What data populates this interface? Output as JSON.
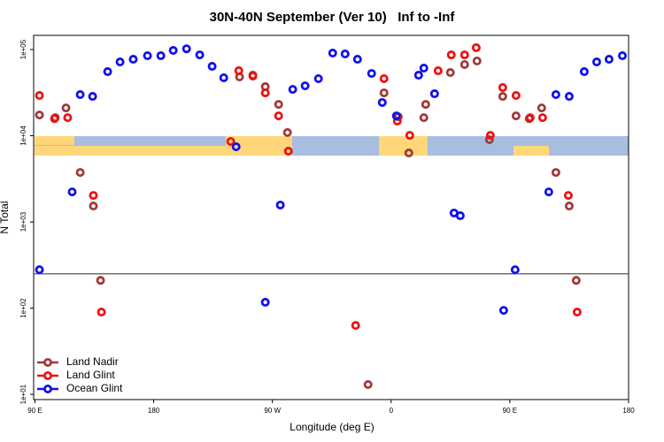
{
  "chart_data": {
    "type": "scatter",
    "title": "30N-40N September (Ver 10)   Inf to -Inf",
    "x_label": "Longitude (deg E)",
    "y_label": "N Total",
    "xlim": [
      89,
      540
    ],
    "xticks": [
      {
        "value": 90,
        "label": "90 E"
      },
      {
        "value": 180,
        "label": "180"
      },
      {
        "value": 270,
        "label": "90 W"
      },
      {
        "value": 360,
        "label": "0"
      },
      {
        "value": 450,
        "label": "90 E"
      },
      {
        "value": 540,
        "label": "180"
      }
    ],
    "ylim": [
      8.7,
      146000
    ],
    "log_y": true,
    "yticks": [
      {
        "value": 10,
        "label": "1e+01"
      },
      {
        "value": 100,
        "label": "1e+02"
      },
      {
        "value": 1000,
        "label": "1e+03"
      },
      {
        "value": 10000,
        "label": "1e+04"
      },
      {
        "value": 100000,
        "label": "1e+05"
      }
    ],
    "hline": 250,
    "legend": "bottom-left",
    "series": [
      {
        "name": "Land Nadir",
        "color": "#a03a3a",
        "x": [
          93.4,
          105.4,
          113.5,
          124.3,
          134.3,
          139.7,
          245.1,
          255.2,
          264.6,
          274.7,
          281.4,
          342.5,
          354.6,
          365.4,
          373.4,
          384.8,
          386.2,
          404.9,
          415.7,
          425.1,
          434.5,
          444.6,
          454.7,
          464.7,
          474.1,
          484.9,
          495.0,
          500.3
        ],
        "values": [
          17400,
          16200,
          21000,
          3750,
          1530,
          210,
          48100,
          50400,
          37100,
          23100,
          10900,
          13,
          31400,
          16600,
          6310,
          16200,
          23100,
          54100,
          67000,
          73600,
          9000,
          28600,
          17000,
          15800,
          21000,
          3750,
          1530,
          210
        ]
      },
      {
        "name": "Land Glint",
        "color": "#ee1111",
        "x": [
          93.4,
          104.8,
          114.8,
          134.3,
          140.4,
          238.4,
          244.5,
          255.2,
          264.6,
          274.7,
          282.1,
          333.1,
          354.6,
          364.7,
          374.1,
          395.6,
          405.6,
          415.7,
          424.5,
          435.2,
          444.6,
          454.7,
          465.4,
          474.8,
          494.3,
          501.0
        ],
        "values": [
          29300,
          15800,
          16200,
          2030,
          90,
          8570,
          56700,
          49200,
          31400,
          17000,
          6620,
          63,
          45900,
          14800,
          10100,
          56700,
          86700,
          86700,
          105000,
          10100,
          36200,
          29300,
          16200,
          16200,
          2030,
          90
        ]
      },
      {
        "name": "Ocean Glint",
        "color": "#1111ee",
        "x": [
          93.4,
          118.2,
          124.3,
          133.7,
          145.1,
          154.5,
          164.5,
          175.3,
          185.4,
          194.8,
          204.9,
          214.9,
          224.3,
          233.1,
          242.5,
          264.6,
          276.0,
          285.4,
          294.8,
          304.9,
          315.7,
          325.1,
          334.5,
          345.2,
          353.3,
          364.0,
          380.8,
          384.8,
          392.9,
          407.7,
          412.4,
          445.3,
          454.0,
          479.5,
          484.9,
          495.0,
          506.4,
          515.8,
          525.2,
          535.3
        ],
        "values": [
          279,
          2230,
          30000,
          28600,
          55400,
          71800,
          77100,
          84700,
          84700,
          97700,
          102000,
          86700,
          63800,
          47000,
          7450,
          117,
          1570,
          34500,
          37900,
          45900,
          91000,
          88900,
          77100,
          52800,
          24300,
          17000,
          50400,
          60900,
          30700,
          1270,
          1180,
          94.2,
          279,
          2230,
          30000,
          28600,
          55400,
          71800,
          77100,
          84700
        ]
      }
    ]
  }
}
